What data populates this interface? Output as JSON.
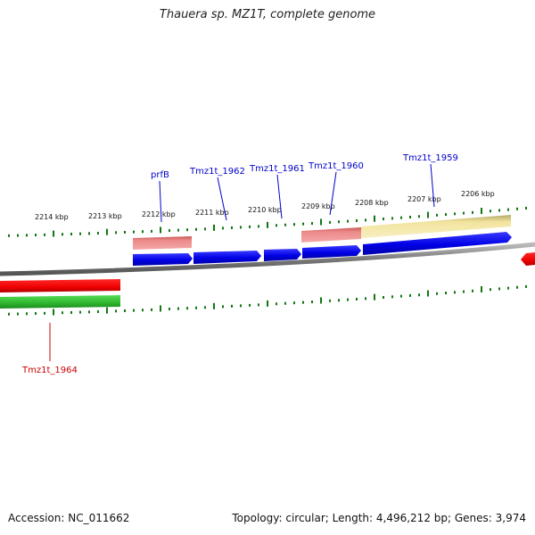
{
  "title": "Thauera sp. MZ1T, complete genome",
  "footer": {
    "accession": "Accession: NC_011662",
    "topology": "Topology: circular; Length: 4,496,212 bp; Genes: 3,974"
  },
  "colors": {
    "cds_forward": "#0000ee",
    "cds_reverse": "#ee0000",
    "trna_like": "#e88080",
    "misc_feature": "#f3e6a0",
    "green_feature": "#33bb33",
    "backbone": "#888888",
    "tick": "#117711",
    "label_forward": "#0000cc",
    "label_reverse": "#cc0000"
  },
  "ticks_upper": [
    "2214 kbp",
    "2213 kbp",
    "2212 kbp",
    "2211 kbp",
    "2210 kbp",
    "2209 kbp",
    "2208 kbp",
    "2207 kbp",
    "2206 kbp"
  ],
  "gene_labels": {
    "prfB": "prfB",
    "g1962": "Tmz1t_1962",
    "g1961": "Tmz1t_1961",
    "g1960": "Tmz1t_1960",
    "g1959": "Tmz1t_1959",
    "g1964": "Tmz1t_1964"
  }
}
